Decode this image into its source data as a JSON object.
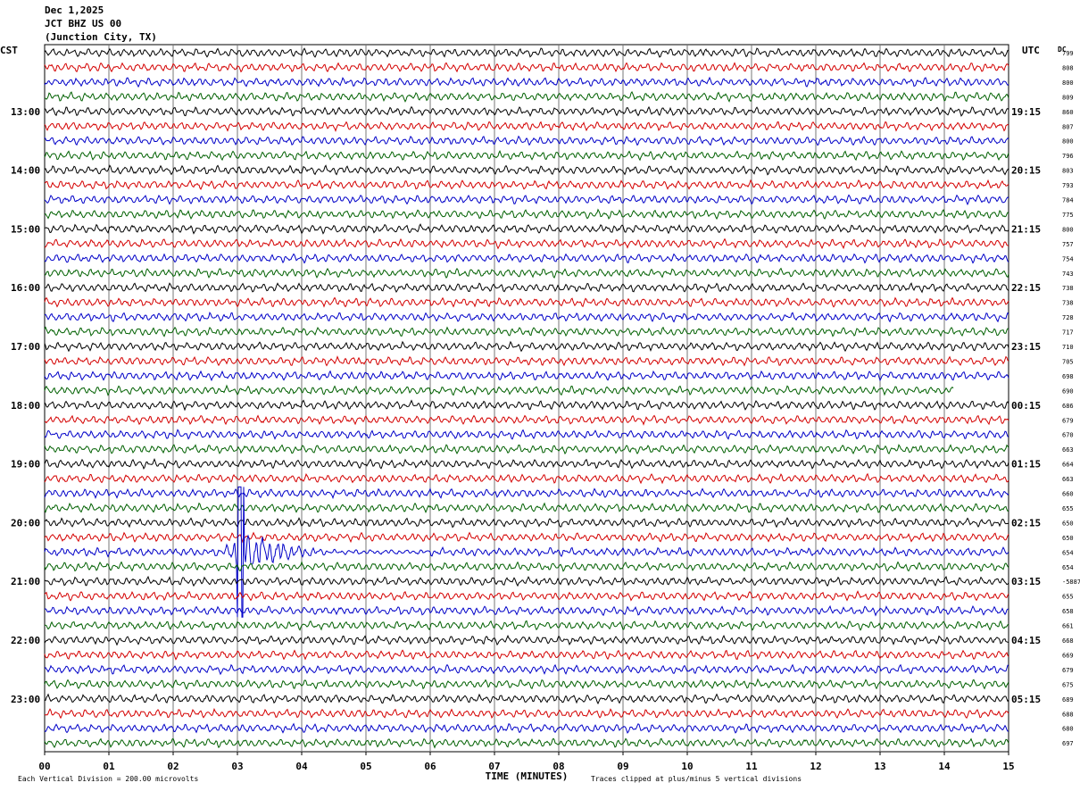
{
  "header": {
    "date": "Dec 1,2025",
    "station": "JCT BHZ US 00",
    "location": "(Junction City, TX)"
  },
  "chart_data": {
    "type": "line",
    "title": "JCT BHZ US 00",
    "left_label": "CST",
    "right_label": "UTC",
    "dc_label": "DC",
    "xlabel": "TIME (MINUTES)",
    "xlim": [
      0,
      15
    ],
    "x_ticks": [
      "00",
      "01",
      "02",
      "03",
      "04",
      "05",
      "06",
      "07",
      "08",
      "09",
      "10",
      "11",
      "12",
      "13",
      "14",
      "15"
    ],
    "left_hour_labels": [
      "13:00",
      "14:00",
      "15:00",
      "16:00",
      "17:00",
      "18:00",
      "19:00",
      "20:00",
      "21:00",
      "22:00",
      "23:00"
    ],
    "right_hour_labels": [
      "19:15",
      "20:15",
      "21:15",
      "22:15",
      "23:15",
      "00:15",
      "01:15",
      "02:15",
      "03:15",
      "04:15",
      "05:15"
    ],
    "trace_colors": [
      "#000000",
      "#d40000",
      "#0000c8",
      "#006000"
    ],
    "trace_count": 48,
    "dc_offsets": [
      "799",
      "808",
      "800",
      "809",
      "860",
      "807",
      "800",
      "796",
      "803",
      "793",
      "784",
      "775",
      "800",
      "757",
      "754",
      "743",
      "738",
      "738",
      "728",
      "717",
      "710",
      "705",
      "698",
      "690",
      "686",
      "679",
      "670",
      "663",
      "664",
      "663",
      "660",
      "655",
      "650",
      "650",
      "654",
      "654",
      "-5887",
      "655",
      "658",
      "661",
      "668",
      "669",
      "679",
      "675",
      "689",
      "688",
      "680",
      "697"
    ],
    "events": [
      {
        "trace": 34,
        "start_min": 2.5,
        "peak_min": 3.05,
        "end_min": 6.0,
        "amplitude_divisions": 5,
        "note": "clipped"
      }
    ],
    "partial_trace": {
      "trace": 23,
      "end_min": 14.15
    },
    "footer_left": "Each Vertical Division =  200.00 microvolts",
    "footer_right": "Traces clipped at plus/minus 5 vertical divisions"
  }
}
